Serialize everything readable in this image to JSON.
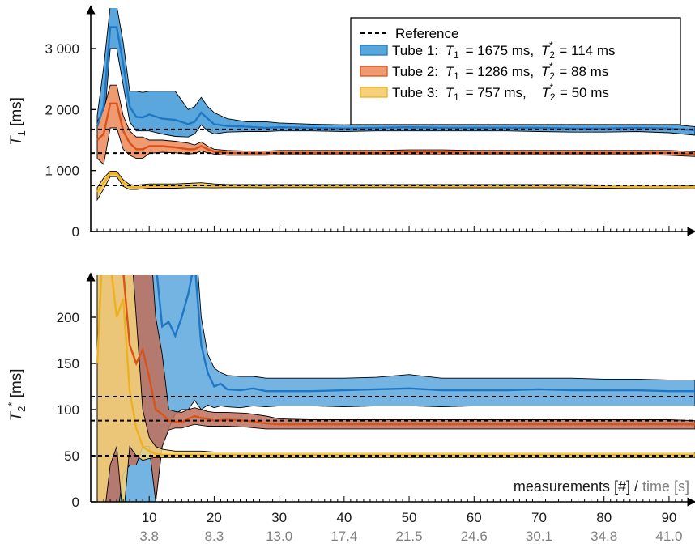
{
  "chart_data": [
    {
      "type": "area",
      "panel": "top",
      "ylabel_symbol": "T",
      "ylabel_subscript": "1",
      "ylabel_unit": " [ms]",
      "ylim": [
        0,
        3600
      ],
      "yticks": [
        0,
        1000,
        2000,
        3000
      ],
      "ytick_labels": [
        "0",
        "1 000",
        "2 000",
        "3 000"
      ],
      "xlim": [
        1,
        94
      ],
      "reference_values": [
        1675,
        1286,
        757
      ],
      "legend": {
        "placement": "top-right",
        "reference_label": "Reference",
        "entries": [
          {
            "text": "Tube 1:  T1 = 1675 ms,  T2* = 114 ms",
            "tube": "Tube 1:",
            "t1": "= 1675 ms,",
            "t2": "= 114 ms"
          },
          {
            "text": "Tube 2:  T1 = 1286 ms,  T2* = 88 ms",
            "tube": "Tube 2:",
            "t1": "= 1286 ms,",
            "t2": "= 88 ms"
          },
          {
            "text": "Tube 3:  T1 = 757 ms,  T2* = 50 ms",
            "tube": "Tube 3:",
            "t1": "= 757 ms,",
            "t2": "= 50 ms"
          }
        ]
      },
      "series": [
        {
          "name": "Tube 1",
          "color": "#1f77c4",
          "fill": "#5aa7dd",
          "x": [
            2,
            3,
            4,
            5,
            6,
            7,
            8,
            9,
            10,
            12,
            14,
            16,
            17,
            18,
            19,
            20,
            22,
            25,
            28,
            30,
            35,
            40,
            45,
            50,
            55,
            60,
            65,
            70,
            75,
            80,
            85,
            90,
            94
          ],
          "mean": [
            1720,
            2050,
            3350,
            3350,
            2750,
            2050,
            1880,
            1870,
            1920,
            1850,
            1830,
            1760,
            1800,
            1950,
            1850,
            1760,
            1730,
            1720,
            1700,
            1710,
            1700,
            1690,
            1700,
            1710,
            1700,
            1700,
            1700,
            1700,
            1690,
            1690,
            1700,
            1690,
            1660
          ],
          "upper": [
            1900,
            2700,
            3700,
            3700,
            3100,
            2300,
            2300,
            2280,
            2300,
            2300,
            2300,
            2000,
            2050,
            2200,
            2050,
            1950,
            1850,
            1800,
            1800,
            1780,
            1760,
            1750,
            1760,
            1780,
            1760,
            1770,
            1770,
            1760,
            1760,
            1760,
            1760,
            1760,
            1720
          ],
          "lower": [
            1550,
            1700,
            3000,
            3000,
            2400,
            1800,
            1650,
            1650,
            1650,
            1600,
            1560,
            1550,
            1600,
            1750,
            1650,
            1600,
            1630,
            1640,
            1640,
            1650,
            1650,
            1640,
            1650,
            1650,
            1650,
            1650,
            1650,
            1640,
            1630,
            1630,
            1640,
            1620,
            1580
          ]
        },
        {
          "name": "Tube 2",
          "color": "#d95319",
          "fill": "#f09a72",
          "x": [
            2,
            3,
            4,
            5,
            6,
            7,
            8,
            9,
            10,
            12,
            14,
            16,
            17,
            18,
            19,
            20,
            22,
            25,
            28,
            30,
            35,
            40,
            45,
            50,
            55,
            60,
            65,
            70,
            75,
            80,
            85,
            90,
            94
          ],
          "mean": [
            1500,
            1600,
            2100,
            2100,
            1650,
            1450,
            1350,
            1350,
            1400,
            1400,
            1380,
            1350,
            1350,
            1400,
            1350,
            1310,
            1290,
            1280,
            1280,
            1290,
            1290,
            1290,
            1290,
            1300,
            1300,
            1290,
            1290,
            1290,
            1290,
            1290,
            1290,
            1290,
            1270
          ],
          "upper": [
            1800,
            2000,
            2400,
            2400,
            1900,
            1650,
            1550,
            1550,
            1500,
            1500,
            1480,
            1450,
            1420,
            1470,
            1400,
            1350,
            1330,
            1320,
            1320,
            1330,
            1330,
            1330,
            1330,
            1340,
            1340,
            1330,
            1330,
            1330,
            1330,
            1330,
            1330,
            1330,
            1310
          ],
          "lower": [
            1200,
            1100,
            1700,
            1700,
            1350,
            1250,
            1200,
            1200,
            1280,
            1300,
            1290,
            1270,
            1280,
            1320,
            1290,
            1270,
            1250,
            1250,
            1250,
            1260,
            1260,
            1260,
            1260,
            1260,
            1260,
            1260,
            1260,
            1260,
            1260,
            1260,
            1260,
            1250,
            1230
          ]
        },
        {
          "name": "Tube 3",
          "color": "#edb120",
          "fill": "#f5d27a",
          "x": [
            2,
            3,
            4,
            5,
            6,
            7,
            8,
            9,
            10,
            12,
            14,
            16,
            18,
            20,
            22,
            25,
            28,
            30,
            35,
            40,
            45,
            50,
            55,
            60,
            65,
            70,
            75,
            80,
            85,
            90,
            94
          ],
          "mean": [
            650,
            800,
            950,
            950,
            800,
            730,
            720,
            730,
            740,
            740,
            740,
            750,
            760,
            745,
            745,
            745,
            740,
            745,
            745,
            745,
            745,
            745,
            740,
            740,
            740,
            740,
            740,
            735,
            735,
            735,
            730
          ],
          "upper": [
            720,
            880,
            990,
            990,
            850,
            770,
            760,
            770,
            780,
            780,
            780,
            790,
            800,
            780,
            770,
            770,
            770,
            770,
            770,
            770,
            770,
            770,
            770,
            770,
            770,
            770,
            770,
            765,
            765,
            760,
            755
          ],
          "lower": [
            520,
            700,
            900,
            900,
            740,
            690,
            690,
            700,
            710,
            710,
            710,
            720,
            720,
            715,
            720,
            720,
            715,
            720,
            720,
            720,
            720,
            720,
            715,
            715,
            715,
            715,
            715,
            710,
            705,
            705,
            700
          ]
        }
      ]
    },
    {
      "type": "area",
      "panel": "bottom",
      "ylabel_symbol": "T",
      "ylabel_subscript": "2",
      "ylabel_sup": "*",
      "ylabel_unit": " [ms]",
      "ylim": [
        0,
        245
      ],
      "yticks": [
        0,
        50,
        100,
        150,
        200
      ],
      "ytick_labels": [
        "0",
        "50",
        "100",
        "150",
        "200"
      ],
      "xlim": [
        1,
        94
      ],
      "reference_values": [
        114,
        88,
        50
      ],
      "xlabel_main": "measurements [#] / ",
      "xlabel_time": "time [s]",
      "xticks": [
        10,
        20,
        30,
        40,
        50,
        60,
        70,
        80,
        90
      ],
      "xtick_labels": [
        "10",
        "20",
        "30",
        "40",
        "50",
        "60",
        "70",
        "80",
        "90"
      ],
      "time_labels": [
        "3.8",
        "8.3",
        "13.0",
        "17.4",
        "21.5",
        "24.6",
        "30.1",
        "34.8",
        "41.0"
      ],
      "series": [
        {
          "name": "Tube 1",
          "color": "#1f77c4",
          "fill": "#5aa7dd",
          "x": [
            2,
            4,
            6,
            8,
            10,
            11,
            12,
            13,
            14,
            15,
            16,
            17,
            18,
            19,
            20,
            21,
            22,
            24,
            26,
            28,
            30,
            35,
            40,
            45,
            50,
            55,
            60,
            65,
            70,
            75,
            80,
            85,
            90,
            94
          ],
          "mean": [
            300,
            300,
            300,
            300,
            300,
            260,
            190,
            195,
            180,
            200,
            225,
            260,
            170,
            140,
            125,
            128,
            122,
            121,
            123,
            120,
            120,
            120,
            121,
            122,
            123,
            121,
            121,
            121,
            122,
            121,
            121,
            121,
            120,
            120
          ],
          "upper": [
            300,
            300,
            300,
            300,
            300,
            300,
            300,
            300,
            300,
            300,
            300,
            300,
            200,
            160,
            145,
            140,
            137,
            136,
            136,
            134,
            134,
            134,
            134,
            135,
            138,
            134,
            134,
            134,
            134,
            134,
            133,
            133,
            132,
            132
          ],
          "lower": [
            -60,
            -60,
            -60,
            -60,
            -60,
            0,
            60,
            80,
            95,
            100,
            100,
            110,
            100,
            105,
            102,
            104,
            103,
            102,
            104,
            103,
            104,
            104,
            103,
            104,
            104,
            103,
            104,
            104,
            104,
            104,
            104,
            104,
            104,
            104
          ]
        },
        {
          "name": "Tube 2",
          "color": "#d95319",
          "fill": "#c0705a",
          "x": [
            2,
            3,
            4,
            5,
            6,
            7,
            8,
            9,
            10,
            11,
            12,
            13,
            14,
            15,
            16,
            17,
            18,
            19,
            20,
            22,
            25,
            28,
            30,
            35,
            40,
            45,
            50,
            55,
            60,
            65,
            70,
            75,
            80,
            85,
            90,
            94
          ],
          "mean": [
            300,
            300,
            300,
            300,
            250,
            170,
            150,
            165,
            135,
            100,
            95,
            88,
            87,
            86,
            90,
            93,
            91,
            90,
            88,
            89,
            88,
            85,
            84,
            84,
            84,
            84,
            84,
            84,
            84,
            84,
            84,
            84,
            84,
            84,
            84,
            84
          ],
          "upper": [
            300,
            300,
            300,
            300,
            300,
            300,
            300,
            300,
            300,
            200,
            160,
            100,
            98,
            97,
            100,
            102,
            100,
            98,
            97,
            97,
            96,
            93,
            90,
            89,
            89,
            89,
            89,
            89,
            89,
            89,
            89,
            89,
            89,
            89,
            89,
            88
          ],
          "lower": [
            -20,
            -20,
            -20,
            -20,
            30,
            40,
            40,
            60,
            60,
            0,
            60,
            78,
            80,
            80,
            82,
            84,
            83,
            82,
            82,
            82,
            81,
            79,
            79,
            79,
            79,
            79,
            79,
            79,
            79,
            79,
            79,
            79,
            79,
            79,
            79,
            79
          ]
        },
        {
          "name": "Tube 3",
          "color": "#edb120",
          "fill": "#f5d27a",
          "x": [
            2,
            3,
            4,
            5,
            6,
            7,
            8,
            9,
            10,
            11,
            12,
            13,
            14,
            16,
            18,
            20,
            25,
            30,
            35,
            40,
            45,
            50,
            55,
            60,
            65,
            70,
            75,
            80,
            85,
            90,
            94
          ],
          "mean": [
            150,
            300,
            260,
            200,
            220,
            120,
            80,
            60,
            55,
            52,
            51,
            51,
            51,
            51,
            51,
            51,
            51,
            51,
            51,
            51,
            51,
            51,
            51,
            51,
            51,
            51,
            51,
            51,
            51,
            51,
            51
          ],
          "upper": [
            300,
            300,
            300,
            300,
            300,
            300,
            200,
            100,
            70,
            60,
            57,
            56,
            55,
            55,
            55,
            54,
            54,
            54,
            54,
            54,
            54,
            54,
            54,
            54,
            54,
            54,
            54,
            54,
            54,
            54,
            54
          ],
          "lower": [
            -20,
            -20,
            40,
            60,
            -20,
            60,
            50,
            45,
            47,
            48,
            48,
            48,
            48,
            48,
            48,
            48,
            48,
            48,
            48,
            48,
            48,
            48,
            48,
            48,
            48,
            48,
            48,
            48,
            48,
            48,
            48
          ]
        }
      ]
    }
  ]
}
